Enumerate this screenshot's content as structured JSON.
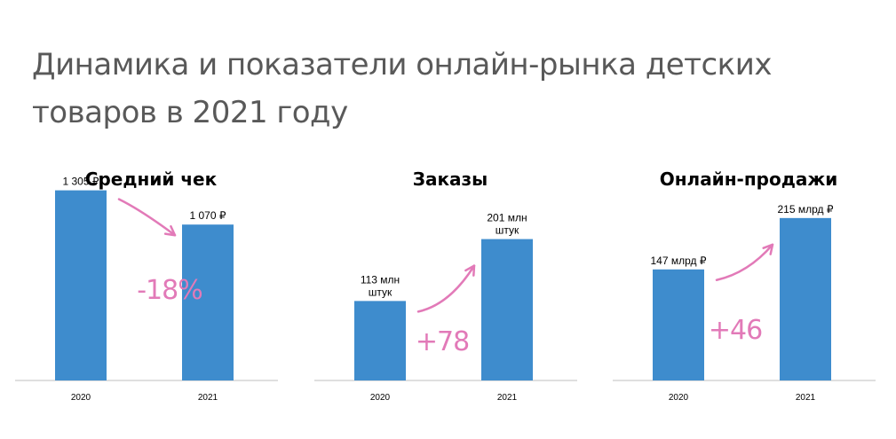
{
  "title": "Динамика и показатели онлайн-рынка детских товаров в 2021 году",
  "colors": {
    "bar": "#3e8ccd",
    "accent": "#e27ab8",
    "axis": "#bfbfbf"
  },
  "chart_data": [
    {
      "type": "bar",
      "title": "Средний чек",
      "categories": [
        "2020",
        "2021"
      ],
      "values": [
        1305,
        1070
      ],
      "data_labels": [
        [
          "1 305 ₽"
        ],
        [
          "1 070 ₽"
        ]
      ],
      "change_label": "-18%",
      "ylim": [
        0,
        1400
      ]
    },
    {
      "type": "bar",
      "title": "Заказы",
      "categories": [
        "2020",
        "2021"
      ],
      "values": [
        113,
        201
      ],
      "data_labels": [
        [
          "113 млн",
          "штук"
        ],
        [
          "201 млн",
          "штук"
        ]
      ],
      "change_label": "+78",
      "ylim": [
        0,
        290
      ]
    },
    {
      "type": "bar",
      "title": "Онлайн-продажи",
      "categories": [
        "2020",
        "2021"
      ],
      "values": [
        147,
        215
      ],
      "data_labels": [
        [
          "147 млрд ₽"
        ],
        [
          "215 млрд ₽"
        ]
      ],
      "change_label": "+46",
      "ylim": [
        0,
        270
      ]
    }
  ]
}
